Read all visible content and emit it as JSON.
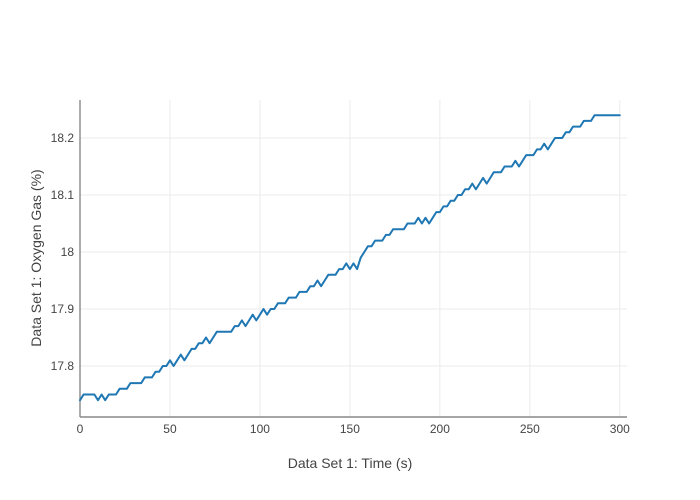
{
  "chart": {
    "x_axis_title": "Data Set 1: Time (s)",
    "y_axis_title": "Data Set 1: Oxygen Gas (%)",
    "colors": {
      "line": "#1f77b4",
      "grid": "#ebebeb",
      "axis_line": "#888888",
      "tick_text": "#444444",
      "background": "#ffffff"
    }
  },
  "chart_data": {
    "type": "line",
    "title": "",
    "xlabel": "Data Set 1: Time (s)",
    "ylabel": "Data Set 1: Oxygen Gas (%)",
    "xticks": [
      "0",
      "50",
      "100",
      "150",
      "200",
      "250",
      "300"
    ],
    "yticks": [
      "17.8",
      "17.9",
      "18",
      "18.1",
      "18.2"
    ],
    "xlim": [
      0,
      304
    ],
    "ylim": [
      17.7105,
      18.2667
    ],
    "grid": true,
    "legend": false,
    "x": [
      0,
      2,
      4,
      6,
      8,
      10,
      12,
      14,
      16,
      18,
      20,
      22,
      24,
      26,
      28,
      30,
      32,
      34,
      36,
      38,
      40,
      42,
      44,
      46,
      48,
      50,
      52,
      54,
      56,
      58,
      60,
      62,
      64,
      66,
      68,
      70,
      72,
      74,
      76,
      78,
      80,
      82,
      84,
      86,
      88,
      90,
      92,
      94,
      96,
      98,
      100,
      102,
      104,
      106,
      108,
      110,
      112,
      114,
      116,
      118,
      120,
      122,
      124,
      126,
      128,
      130,
      132,
      134,
      136,
      138,
      140,
      142,
      144,
      146,
      148,
      150,
      152,
      154,
      156,
      158,
      160,
      162,
      164,
      166,
      168,
      170,
      172,
      174,
      176,
      178,
      180,
      182,
      184,
      186,
      188,
      190,
      192,
      194,
      196,
      198,
      200,
      202,
      204,
      206,
      208,
      210,
      212,
      214,
      216,
      218,
      220,
      222,
      224,
      226,
      228,
      230,
      232,
      234,
      236,
      238,
      240,
      242,
      244,
      246,
      248,
      250,
      252,
      254,
      256,
      258,
      260,
      262,
      264,
      266,
      268,
      270,
      272,
      274,
      276,
      278,
      280,
      282,
      284,
      286,
      288,
      290,
      292,
      294,
      296,
      298,
      300
    ],
    "y": [
      17.74,
      17.75,
      17.75,
      17.75,
      17.75,
      17.74,
      17.75,
      17.74,
      17.75,
      17.75,
      17.75,
      17.76,
      17.76,
      17.76,
      17.77,
      17.77,
      17.77,
      17.77,
      17.78,
      17.78,
      17.78,
      17.79,
      17.79,
      17.8,
      17.8,
      17.81,
      17.8,
      17.81,
      17.82,
      17.81,
      17.82,
      17.83,
      17.83,
      17.84,
      17.84,
      17.85,
      17.84,
      17.85,
      17.86,
      17.86,
      17.86,
      17.86,
      17.86,
      17.87,
      17.87,
      17.88,
      17.87,
      17.88,
      17.89,
      17.88,
      17.89,
      17.9,
      17.89,
      17.9,
      17.9,
      17.91,
      17.91,
      17.91,
      17.92,
      17.92,
      17.92,
      17.93,
      17.93,
      17.93,
      17.94,
      17.94,
      17.95,
      17.94,
      17.95,
      17.96,
      17.96,
      17.96,
      17.97,
      17.97,
      17.98,
      17.97,
      17.98,
      17.97,
      17.99,
      18.0,
      18.01,
      18.01,
      18.02,
      18.02,
      18.02,
      18.03,
      18.03,
      18.04,
      18.04,
      18.04,
      18.04,
      18.05,
      18.05,
      18.05,
      18.06,
      18.05,
      18.06,
      18.05,
      18.06,
      18.07,
      18.07,
      18.08,
      18.08,
      18.09,
      18.09,
      18.1,
      18.1,
      18.11,
      18.11,
      18.12,
      18.11,
      18.12,
      18.13,
      18.12,
      18.13,
      18.14,
      18.14,
      18.14,
      18.15,
      18.15,
      18.15,
      18.16,
      18.15,
      18.16,
      18.17,
      18.17,
      18.17,
      18.18,
      18.18,
      18.19,
      18.18,
      18.19,
      18.2,
      18.2,
      18.2,
      18.21,
      18.21,
      18.22,
      18.22,
      18.22,
      18.23,
      18.23,
      18.23,
      18.24,
      18.24,
      18.24,
      18.24,
      18.24,
      18.24,
      18.24,
      18.24
    ]
  }
}
